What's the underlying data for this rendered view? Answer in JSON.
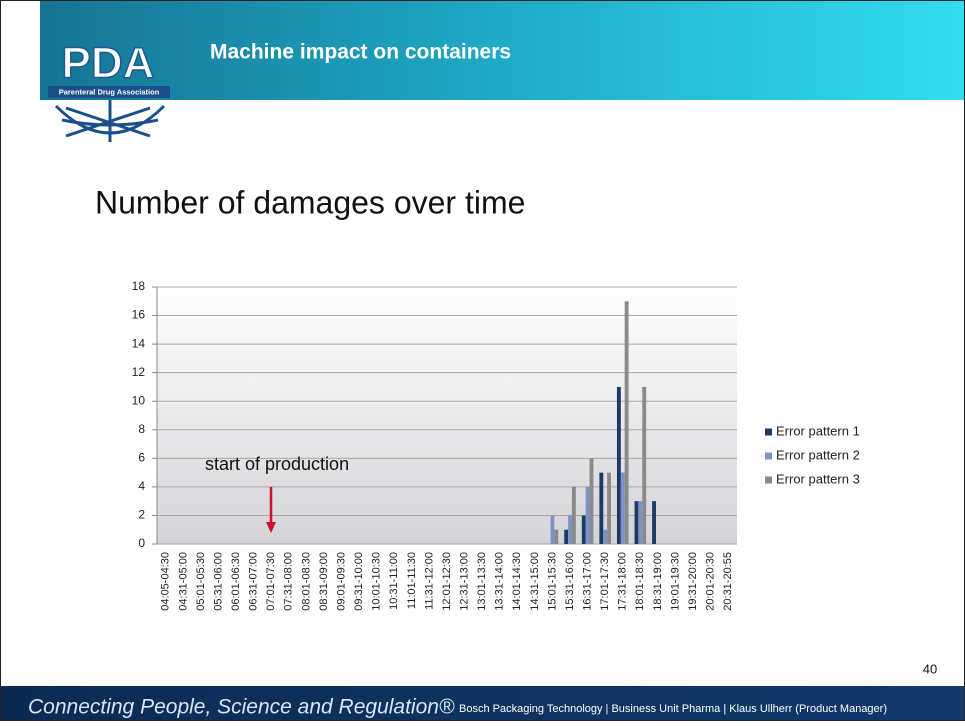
{
  "header": {
    "title": "Machine impact on containers",
    "logo": "PDA",
    "logo_subtitle": "Parenteral Drug Association"
  },
  "heading": "Number of damages over time",
  "chart_data": {
    "type": "bar",
    "annotation": "start of production",
    "categories": [
      "04:05-04:30",
      "04:31-05:00",
      "05:01-05:30",
      "05:31-06:00",
      "06:01-06:30",
      "06:31-07:00",
      "07:01-07:30",
      "07:31-08:00",
      "08:01-08:30",
      "08:31-09:00",
      "09:01-09:30",
      "09:31-10:00",
      "10:01-10:30",
      "10:31-11:00",
      "11:01-11:30",
      "11:31-12:00",
      "12:01-12:30",
      "12:31-13:00",
      "13:01-13:30",
      "13:31-14:00",
      "14:01-14:30",
      "14:31-15:00",
      "15:01-15:30",
      "15:31-16:00",
      "16:31-17:00",
      "17:01-17:30",
      "17:31-18:00",
      "18:01-18:30",
      "18:31-19:00",
      "19:01-19:30",
      "19:31-20:00",
      "20:01-20:30",
      "20:31-20:55"
    ],
    "series": [
      {
        "name": "Error pattern 1",
        "color": "#1c3a64",
        "values": [
          0,
          0,
          0,
          0,
          0,
          0,
          0,
          0,
          0,
          0,
          0,
          0,
          0,
          0,
          0,
          0,
          0,
          0,
          0,
          0,
          0,
          0,
          0,
          1,
          2,
          5,
          11,
          3,
          3,
          0,
          0,
          0,
          0
        ]
      },
      {
        "name": "Error pattern 2",
        "color": "#7b93c6",
        "values": [
          0,
          0,
          0,
          0,
          0,
          0,
          0,
          0,
          0,
          0,
          0,
          0,
          0,
          0,
          0,
          0,
          0,
          0,
          0,
          0,
          0,
          0,
          2,
          2,
          4,
          1,
          5,
          3,
          0,
          0,
          0,
          0,
          0
        ]
      },
      {
        "name": "Error pattern 3",
        "color": "#8a8a8a",
        "values": [
          0,
          0,
          0,
          0,
          0,
          0,
          0,
          0,
          0,
          0,
          0,
          0,
          0,
          0,
          0,
          0,
          0,
          0,
          0,
          0,
          0,
          0,
          1,
          4,
          6,
          5,
          17,
          11,
          0,
          0,
          0,
          0,
          0
        ]
      }
    ],
    "ylim": [
      0,
      18
    ],
    "yticks": [
      0,
      2,
      4,
      6,
      8,
      10,
      12,
      14,
      16,
      18
    ],
    "grid": true,
    "legend": "right"
  },
  "page_number": "40",
  "footer": {
    "slogan": "Connecting People, Science and Regulation®",
    "credit": "Bosch Packaging Technology | Business Unit Pharma | Klaus Ullherr (Product Manager)"
  }
}
